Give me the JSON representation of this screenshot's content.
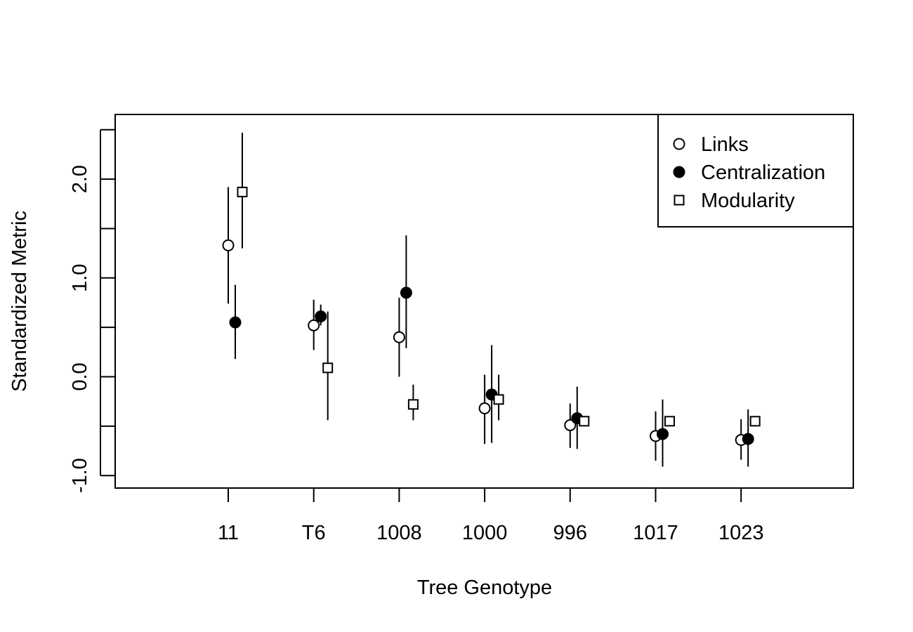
{
  "chart_data": {
    "type": "scatter",
    "title": "",
    "xlabel": "Tree Genotype",
    "ylabel": "Standardized Metric",
    "categories": [
      "11",
      "T6",
      "1008",
      "1000",
      "996",
      "1017",
      "1023"
    ],
    "ylim": [
      -1.13,
      2.6
    ],
    "yticks": [
      "-1.0",
      "0.0",
      "1.0",
      "2.0"
    ],
    "yticks_minor": [
      -1.0,
      -0.5,
      0.0,
      0.5,
      1.0,
      1.5,
      2.0,
      2.5
    ],
    "grid": false,
    "legend_position": "top-right",
    "series": [
      {
        "name": "Links",
        "marker": "open-circle",
        "values": [
          1.33,
          0.52,
          0.4,
          -0.32,
          -0.49,
          -0.6,
          -0.64
        ],
        "lower": [
          0.74,
          0.27,
          0.0,
          -0.68,
          -0.72,
          -0.85,
          -0.84
        ],
        "upper": [
          1.92,
          0.78,
          0.8,
          0.02,
          -0.27,
          -0.35,
          -0.43
        ]
      },
      {
        "name": "Centralization",
        "marker": "filled-circle",
        "values": [
          0.55,
          0.61,
          0.85,
          -0.18,
          -0.42,
          -0.58,
          -0.63
        ],
        "lower": [
          0.18,
          0.52,
          0.29,
          -0.67,
          -0.73,
          -0.91,
          -0.91
        ],
        "upper": [
          0.93,
          0.73,
          1.43,
          0.32,
          -0.1,
          -0.23,
          -0.33
        ]
      },
      {
        "name": "Modularity",
        "marker": "open-square",
        "values": [
          1.87,
          0.09,
          -0.28,
          -0.23,
          -0.45,
          -0.45,
          -0.45
        ],
        "lower": [
          1.3,
          -0.44,
          -0.44,
          -0.44,
          -0.45,
          -0.45,
          -0.45
        ],
        "upper": [
          2.47,
          0.66,
          -0.08,
          0.02,
          -0.45,
          -0.45,
          -0.45
        ]
      }
    ]
  }
}
